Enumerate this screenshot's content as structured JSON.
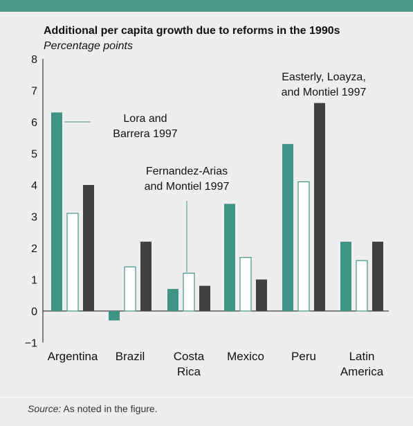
{
  "title": "Additional per capita growth due to reforms in the 1990s",
  "subtitle": "Percentage points",
  "source": {
    "label": "Source:",
    "text": "As noted in the figure."
  },
  "colors": {
    "series1": "#3e9585",
    "series2": "#ffffff",
    "series3": "#404040",
    "topbar": "#4a9b8c"
  },
  "chart_data": {
    "type": "bar",
    "title": "Additional per capita growth due to reforms in the 1990s",
    "subtitle": "Percentage points",
    "categories": [
      "Argentina",
      "Brazil",
      "Costa Rica",
      "Mexico",
      "Peru",
      "Latin America"
    ],
    "category_labels": [
      [
        "Argentina"
      ],
      [
        "Brazil"
      ],
      [
        "Costa",
        "Rica"
      ],
      [
        "Mexico"
      ],
      [
        "Peru"
      ],
      [
        "Latin",
        "America"
      ]
    ],
    "series": [
      {
        "name": "Lora and Barrera 1997",
        "label_lines": [
          "Lora and",
          "Barrera 1997"
        ],
        "color": "#3e9585",
        "values": [
          6.3,
          -0.3,
          0.7,
          3.4,
          5.3,
          2.2
        ]
      },
      {
        "name": "Fernandez-Arias and Montiel 1997",
        "label_lines": [
          "Fernandez-Arias",
          "and Montiel 1997"
        ],
        "color": "#ffffff",
        "values": [
          3.1,
          1.4,
          1.2,
          1.7,
          4.1,
          1.6
        ]
      },
      {
        "name": "Easterly, Loayza, and Montiel 1997",
        "label_lines": [
          "Easterly, Loayza,",
          "and Montiel 1997"
        ],
        "color": "#404040",
        "values": [
          4.0,
          2.2,
          0.8,
          1.0,
          6.6,
          2.2
        ]
      }
    ],
    "ylim": [
      -1,
      8
    ],
    "yticks": [
      "−1",
      "0",
      "1",
      "2",
      "3",
      "4",
      "5",
      "6",
      "7",
      "8"
    ],
    "xlabel": "",
    "ylabel": "",
    "grid": false,
    "legend": "direct labels"
  }
}
